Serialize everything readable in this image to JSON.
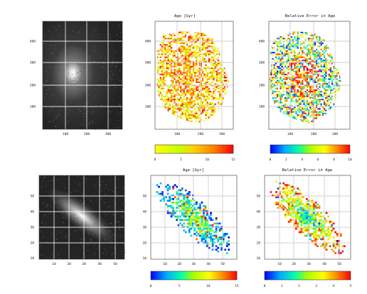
{
  "chart_data": [
    {
      "type": "heatmap",
      "description_row": "top",
      "panel": "image",
      "title": "",
      "x_ticks": [
        "100",
        "200",
        "300"
      ],
      "y_ticks": [
        "400",
        "300",
        "200",
        "100"
      ]
    },
    {
      "type": "heatmap",
      "panel": "map",
      "title": "Age [Gyr]",
      "x_ticks": [
        "100",
        "200",
        "300"
      ],
      "y_ticks": [
        "400",
        "300",
        "200",
        "100"
      ],
      "colorbar": {
        "ticks": [
          "0",
          "5",
          "10",
          "15"
        ],
        "range": [
          0,
          15
        ],
        "palette": "rainbow-yellow"
      }
    },
    {
      "type": "heatmap",
      "panel": "map",
      "title": "Relative Error in Age",
      "x_ticks": [
        "100",
        "200",
        "300"
      ],
      "y_ticks": [
        "400",
        "300",
        "200",
        "100"
      ],
      "colorbar": {
        "ticks": [
          "0",
          "2",
          "4",
          "6",
          "8",
          "10"
        ],
        "range": [
          0,
          10
        ],
        "palette": "rainbow-blue"
      }
    },
    {
      "type": "heatmap",
      "panel": "image",
      "title": "",
      "x_ticks": [
        "10",
        "20",
        "30",
        "40",
        "50"
      ],
      "y_ticks": [
        "50",
        "40",
        "30",
        "20",
        "10"
      ]
    },
    {
      "type": "heatmap",
      "panel": "map",
      "title": "Age [Gyr]",
      "x_ticks": [
        "10",
        "20",
        "30",
        "40",
        "50"
      ],
      "y_ticks": [
        "50",
        "40",
        "30",
        "20",
        "10"
      ],
      "colorbar": {
        "ticks": [
          "0",
          "5",
          "10",
          "15"
        ],
        "range": [
          0,
          15
        ],
        "palette": "rainbow-blue"
      }
    },
    {
      "type": "heatmap",
      "panel": "map",
      "title": "Relative Error in Age",
      "x_ticks": [
        "10",
        "20",
        "30",
        "40",
        "50"
      ],
      "y_ticks": [
        "50",
        "40",
        "30",
        "20",
        "10"
      ],
      "colorbar": {
        "ticks": [
          "0",
          "1",
          "2",
          "3",
          "4",
          "5"
        ],
        "range": [
          0,
          5
        ],
        "palette": "rainbow-blue"
      }
    }
  ]
}
